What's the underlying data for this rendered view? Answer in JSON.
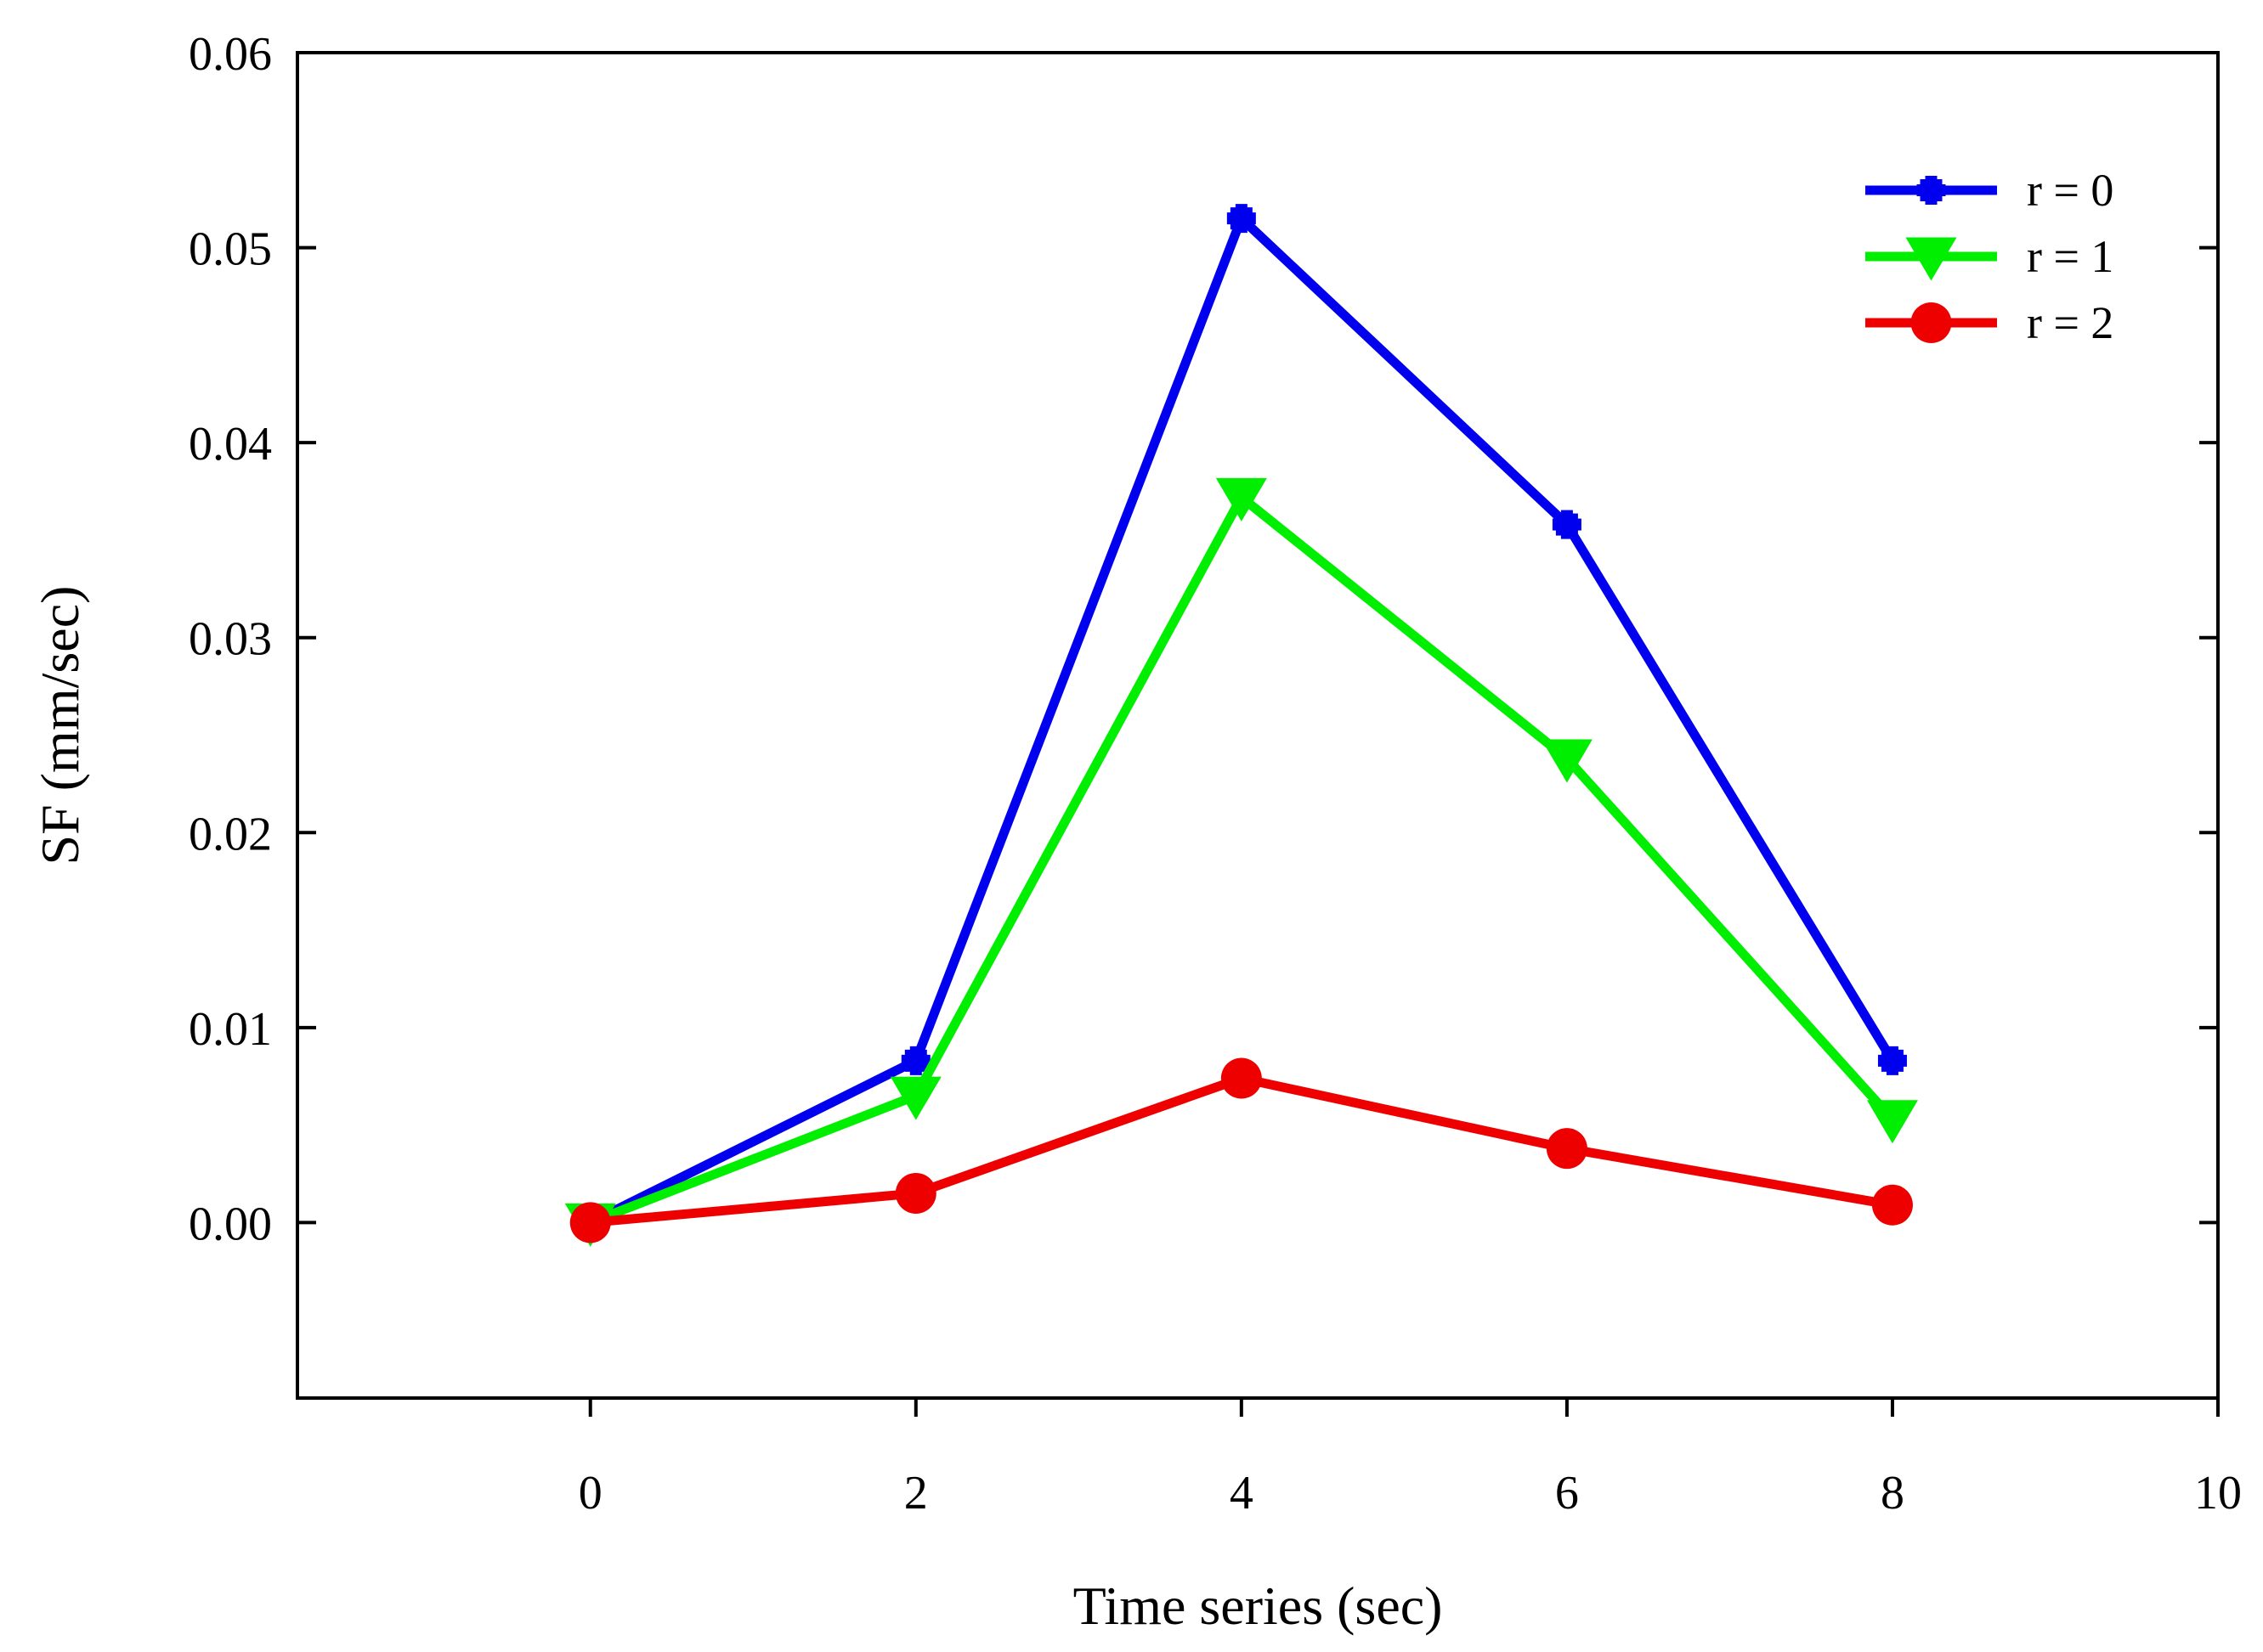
{
  "chart_data": {
    "type": "line",
    "title": "",
    "xlabel": "Time series (sec)",
    "ylabel": "SF (mm/sec)",
    "xlim": [
      -1.8,
      10
    ],
    "ylim": [
      -0.009,
      0.06
    ],
    "xticks": [
      0,
      2,
      4,
      6,
      8,
      10
    ],
    "xtick_labels": [
      "0",
      "2",
      "4",
      "6",
      "8",
      "10"
    ],
    "yticks": [
      0,
      0.01,
      0.02,
      0.03,
      0.04,
      0.05,
      0.06
    ],
    "ytick_labels": [
      "0.00",
      "0.01",
      "0.02",
      "0.03",
      "0.04",
      "0.05",
      "0.06"
    ],
    "grid": false,
    "legend_position": "top-right",
    "x": [
      0,
      2,
      4,
      6,
      8
    ],
    "series": [
      {
        "name": "r = 0",
        "values": [
          0,
          0.0083,
          0.0515,
          0.0358,
          0.0083
        ],
        "color": "#0000ee",
        "marker": "plus-square"
      },
      {
        "name": "r = 1",
        "values": [
          0,
          0.0065,
          0.0372,
          0.0238,
          0.0053
        ],
        "color": "#00ee00",
        "marker": "triangle-down"
      },
      {
        "name": "r = 2",
        "values": [
          0,
          0.0015,
          0.0074,
          0.0038,
          0.0009
        ],
        "color": "#ee0000",
        "marker": "circle"
      }
    ]
  }
}
